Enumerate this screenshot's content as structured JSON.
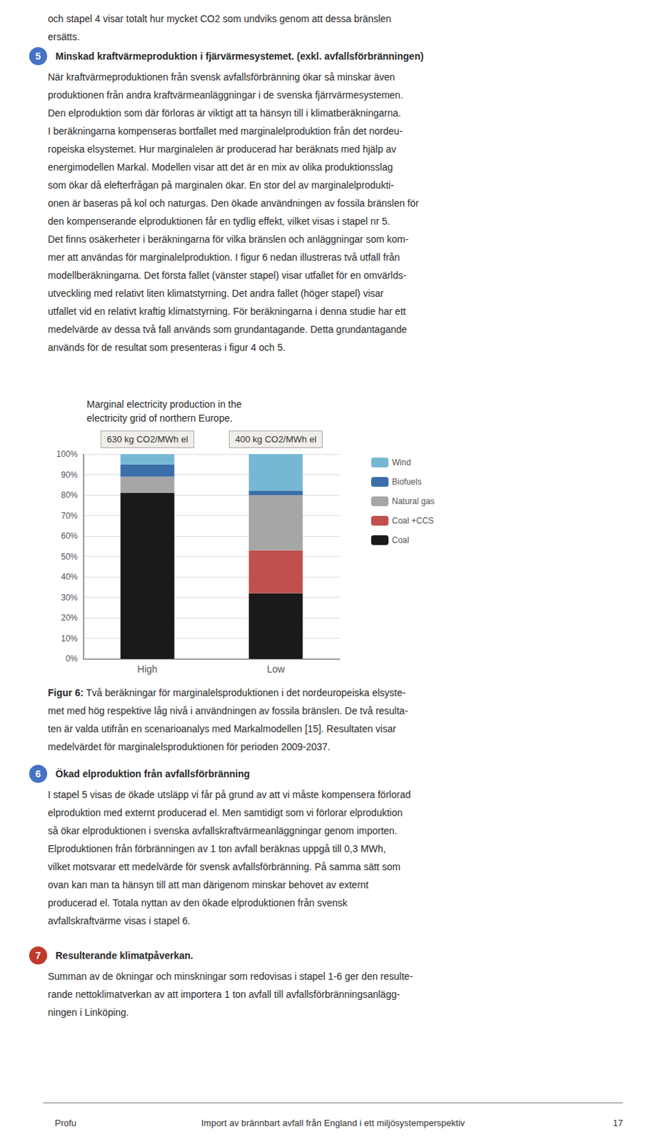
{
  "chart_data": {
    "type": "bar",
    "title": "Marginal electricity production in the\nelectricity grid of northern Europe.",
    "categories": [
      "High",
      "Low"
    ],
    "series": [
      {
        "name": "Coal",
        "color": "#1a1a1a",
        "values": [
          81,
          32
        ]
      },
      {
        "name": "Coal +CCS",
        "color": "#c0504d",
        "values": [
          0,
          21
        ]
      },
      {
        "name": "Natural gas",
        "color": "#a6a6a6",
        "values": [
          8,
          27
        ]
      },
      {
        "name": "Biofuels",
        "color": "#3a6faa",
        "values": [
          6,
          2
        ]
      },
      {
        "name": "Wind",
        "color": "#76b8d4",
        "values": [
          5,
          18
        ]
      }
    ],
    "stacked": true,
    "ylim": [
      0,
      100
    ],
    "yticks": [
      {
        "value": 0,
        "label": "0%"
      },
      {
        "value": 10,
        "label": "10%"
      },
      {
        "value": 20,
        "label": "20%"
      },
      {
        "value": 30,
        "label": "30%"
      },
      {
        "value": 40,
        "label": "40%"
      },
      {
        "value": 50,
        "label": "50%"
      },
      {
        "value": 60,
        "label": "60%"
      },
      {
        "value": 70,
        "label": "70%"
      },
      {
        "value": 80,
        "label": "80%"
      },
      {
        "value": 90,
        "label": "90%"
      },
      {
        "value": 100,
        "label": "100%"
      }
    ],
    "grid": true,
    "legend": "right",
    "annotations": [
      {
        "category": "High",
        "text": "630 kg CO2/MWh el"
      },
      {
        "category": "Low",
        "text": "400 kg CO2/MWh el"
      }
    ]
  },
  "page": {
    "top_lines": [
      "och stapel 4 visar totalt hur mycket CO2 som undviks genom att dessa bränslen",
      "ersätts."
    ],
    "sections": [
      {
        "number": 5,
        "color": "#4472c4",
        "title": "Minskad kraftvärmeproduktion i fjärvärmesystemet. (exkl. avfallsförbränningen)",
        "lines": [
          "När kraftvärmeproduktionen från svensk avfallsförbränning ökar så minskar även",
          "produktionen från andra kraftvärmeanläggningar i de svenska fjärrvärmesystemen.",
          "Den elproduktion som där förloras är viktigt att ta hänsyn till i klimatberäkningarna.",
          "I beräkningarna kompenseras bortfallet med marginalelproduktion från det nordeu-",
          "ropeiska elsystemet. Hur marginalelen är producerad har beräknats med hjälp av",
          "energimodellen Markal. Modellen visar att det är en mix av olika produktionsslag",
          "som ökar då elefterfrågan på marginalen ökar. En stor del av marginalelprodukti-",
          "onen är baseras på kol och naturgas. Den ökade användningen av fossila bränslen för",
          "den kompenserande elproduktionen får en tydlig effekt, vilket visas i stapel nr 5.",
          "Det finns osäkerheter i beräkningarna för vilka bränslen och anläggningar som kom-",
          "mer att användas för marginalelproduktion. I figur 6 nedan illustreras två utfall från",
          "modellberäkningarna. Det första fallet (vänster stapel) visar utfallet för en omvärlds-",
          "utveckling med relativt liten klimatstyrning. Det andra fallet (höger stapel) visar",
          "utfallet vid en relativt kraftig klimatstyrning. För beräkningarna i denna studie har ett",
          "medelvärde av dessa två fall används som grundantagande. Detta grundantagande",
          "används för de resultat som presenteras i figur 4 och 5."
        ]
      },
      {
        "number": 6,
        "color": "#4472c4",
        "title": "Ökad elproduktion från avfallsförbränning",
        "lines": [
          "I stapel 5 visas de ökade utsläpp vi får på grund av att vi måste kompensera förlorad",
          "elproduktion med externt producerad el. Men samtidigt som vi förlorar elproduktion",
          "så ökar elproduktionen i svenska avfallskraftvärmeanläggningar genom importen.",
          "Elproduktionen från förbränningen av 1 ton avfall beräknas uppgå till 0,3 MWh,",
          "vilket motsvarar ett medelvärde för svensk avfallsförbränning. På samma sätt som",
          "ovan kan man ta hänsyn till att man därigenom minskar behovet av externt",
          "producerad el. Totala nyttan av den ökade elproduktionen från svensk",
          "avfallskraftvärme visas i stapel 6."
        ]
      },
      {
        "number": 7,
        "color": "#c0392b",
        "title": "Resulterande klimatpåverkan.",
        "lines": [
          "Summan av de ökningar och minskningar som redovisas i stapel 1-6 ger den resulte-",
          "rande nettoklimatverkan av att importera 1 ton avfall till avfallsförbränningsanlägg-",
          "ningen i Linköping."
        ]
      }
    ],
    "caption": {
      "label": "Figur 6:",
      "lines": [
        "Två beräkningar för marginalelsproduktionen i det nordeuropeiska elsyste-",
        "met med hög respektive låg nivå i användningen av fossila bränslen. De två resulta-",
        "ten är valda utifrån en scenarioanalys med Markalmodellen [15]. Resultaten visar",
        "medelvärdet för marginalelsproduktionen för perioden 2009-2037."
      ]
    },
    "footer": {
      "left": "Profu",
      "center": "Import av brännbart avfall från England i ett miljösystemperspektiv",
      "right": "17"
    }
  }
}
